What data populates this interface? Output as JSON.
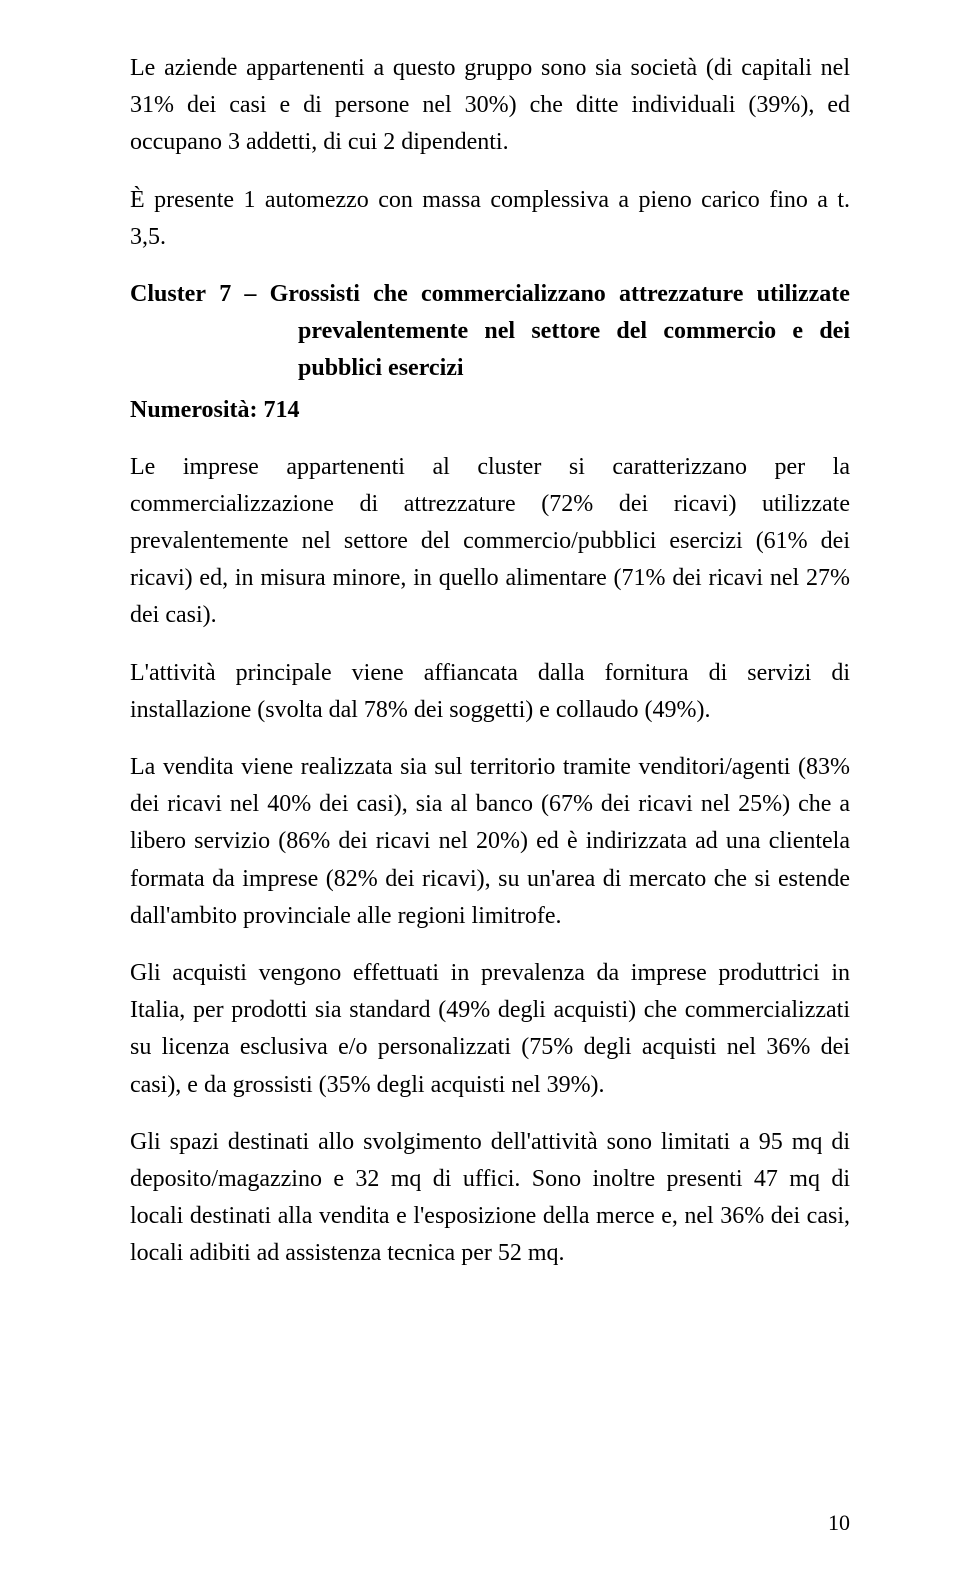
{
  "page_number": "10",
  "para1": "Le aziende appartenenti a questo gruppo sono sia società (di capitali nel 31% dei casi e di persone nel 30%) che ditte individuali (39%), ed occupano 3 addetti, di cui 2 dipendenti.",
  "para2": "È presente 1 automezzo con massa complessiva a pieno carico fino a t. 3,5.",
  "cluster": {
    "line1_left": "Cluster",
    "line1_num": "7",
    "line1_dash": "–",
    "line1_w1": "Grossisti",
    "line1_w2": "che",
    "line1_w3": "commercializzano",
    "line1_w4": "attrezzature",
    "line1_w5": "utilizzate",
    "rest": "prevalentemente nel settore del commercio e dei pubblici esercizi"
  },
  "numerosita": "Numerosità: 714",
  "para3": "Le imprese appartenenti al cluster si caratterizzano per la commercializzazione di attrezzature (72% dei ricavi) utilizzate prevalentemente nel settore del commercio/pubblici esercizi (61% dei ricavi) ed, in misura minore, in quello alimentare (71% dei ricavi nel 27% dei casi).",
  "para4": "L'attività principale viene affiancata dalla fornitura di servizi di installazione (svolta dal 78% dei soggetti) e collaudo (49%).",
  "para5": "La vendita viene realizzata sia sul territorio tramite venditori/agenti (83% dei ricavi nel 40% dei casi), sia al banco (67% dei ricavi nel 25%) che a libero servizio (86% dei ricavi nel 20%) ed è indirizzata ad una clientela formata da imprese (82% dei ricavi), su un'area di mercato che si estende dall'ambito provinciale alle regioni limitrofe.",
  "para6": "Gli acquisti vengono effettuati in prevalenza da imprese produttrici in Italia, per prodotti sia standard (49% degli acquisti) che commercializzati su licenza esclusiva e/o personalizzati (75% degli acquisti nel 36% dei casi), e da grossisti (35% degli acquisti nel 39%).",
  "para7": "Gli spazi destinati allo svolgimento dell'attività sono limitati a 95 mq di deposito/magazzino e 32 mq di uffici. Sono inoltre presenti 47 mq di locali destinati alla vendita e l'esposizione della merce e, nel 36% dei casi, locali adibiti ad assistenza tecnica per 52 mq."
}
